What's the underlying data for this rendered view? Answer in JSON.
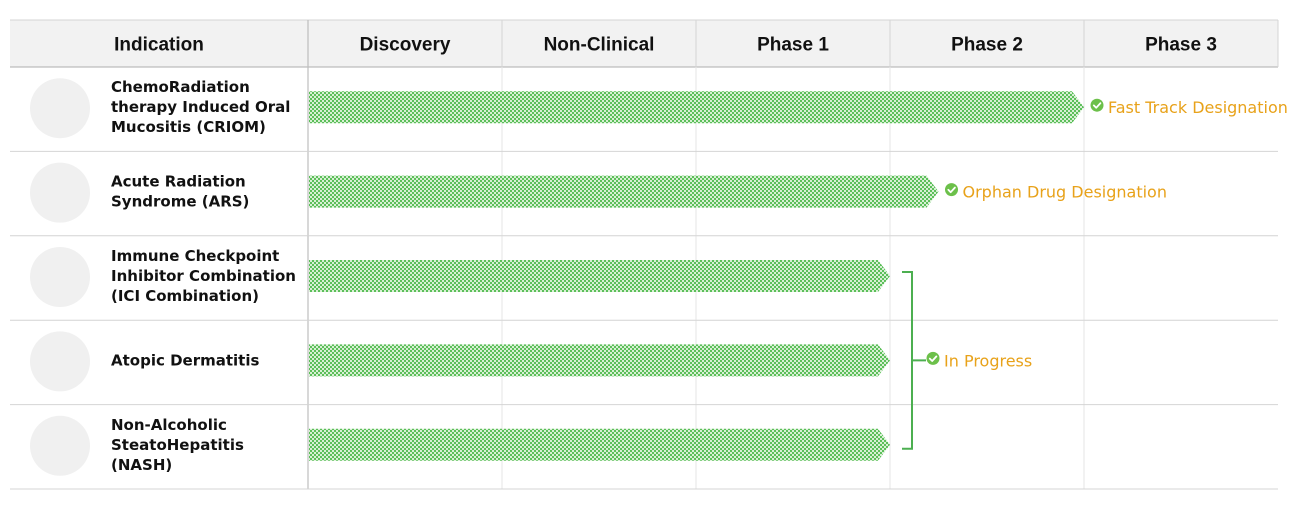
{
  "chart_data": {
    "type": "bar",
    "header": {
      "indication": "Indication",
      "stages": [
        "Discovery",
        "Non-Clinical",
        "Phase 1",
        "Phase 2",
        "Phase 3"
      ]
    },
    "rows": [
      {
        "lines": [
          "ChemoRadiation",
          "therapy Induced Oral",
          "Mucositis (CRIOM)"
        ],
        "progress_stages": 4.0
      },
      {
        "lines": [
          "Acute Radiation",
          "Syndrome (ARS)"
        ],
        "progress_stages": 3.25
      },
      {
        "lines": [
          "Immune Checkpoint",
          "Inhibitor Combination",
          "(ICI Combination)"
        ],
        "progress_stages": 3.0
      },
      {
        "lines": [
          "Atopic Dermatitis"
        ],
        "progress_stages": 3.0
      },
      {
        "lines": [
          "Non-Alcoholic",
          "SteatoHepatitis",
          "(NASH)"
        ],
        "progress_stages": 3.0
      }
    ],
    "annotations": [
      {
        "text": "Fast Track Designation",
        "rows": [
          0
        ]
      },
      {
        "text": "Orphan Drug Designation",
        "rows": [
          1
        ]
      },
      {
        "text": "In Progress",
        "rows": [
          2,
          3,
          4
        ]
      }
    ],
    "colors": {
      "bar": "#5cbf5a",
      "bar_light": "#d8f0d4",
      "annotation_text": "#e8a21a",
      "check": "#6cc04a",
      "bracket": "#4caf50",
      "header_bg": "#f2f2f2",
      "grid": "#d4d4d4",
      "icon_placeholder": "#f0f0f0"
    }
  }
}
